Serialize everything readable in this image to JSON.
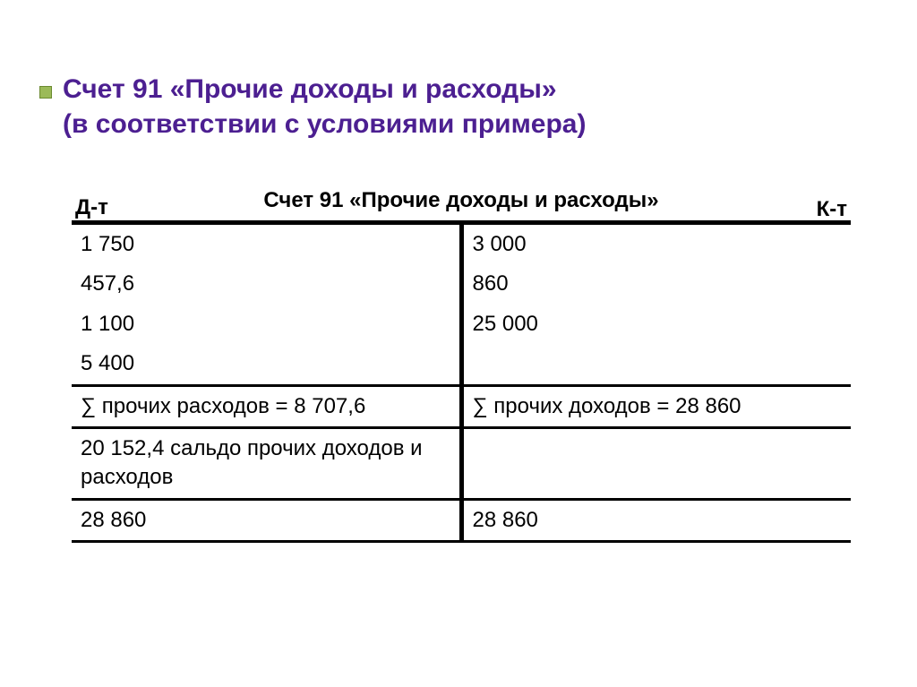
{
  "title": {
    "line1": "Счет 91 «Прочие доходы и расходы»",
    "line2": "(в соответствии с условиями примера)",
    "color": "#4c1f91",
    "fontsize": 30
  },
  "bullet": {
    "fill": "#9bba58",
    "border": "#6b8a30"
  },
  "table": {
    "caption": "Счет 91 «Прочие доходы и расходы»",
    "debit_label": "Д-т",
    "credit_label": "К-т",
    "body_fontsize": 24,
    "text_color": "#000000",
    "border_color": "#000000",
    "top_border_width": 5,
    "section_border_width": 3,
    "vertical_divider_width": 5,
    "saldo_color": "#1f3a6e",
    "rows": [
      {
        "debit": "1 750",
        "credit": "3 000"
      },
      {
        "debit": "457,6",
        "credit": "860"
      },
      {
        "debit": "1 100",
        "credit": "25 000"
      },
      {
        "debit": "5 400",
        "credit": ""
      }
    ],
    "sum_row": {
      "debit": "∑ прочих расходов = 8 707,6",
      "credit": "∑ прочих доходов = 28 860"
    },
    "saldo_row": {
      "debit": "20 152,4 сальдо прочих доходов и расходов",
      "credit": ""
    },
    "total_row": {
      "debit": "28 860",
      "credit": "28 860"
    }
  }
}
